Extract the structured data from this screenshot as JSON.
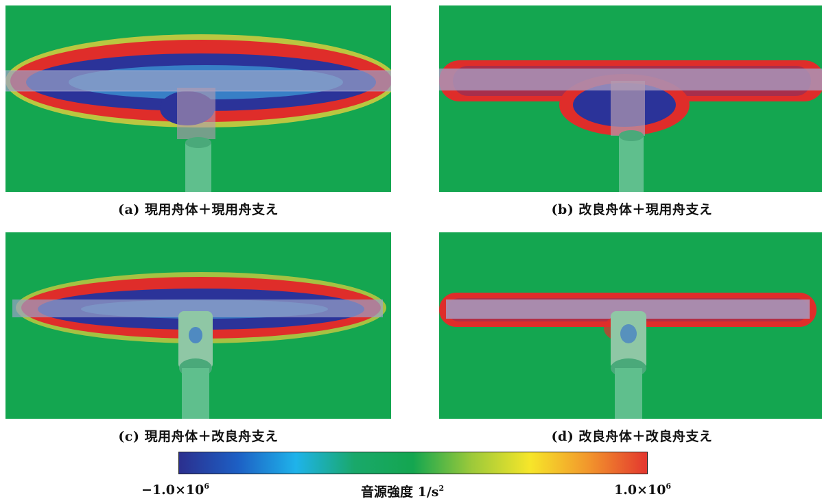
{
  "panels": [
    {
      "id": "a",
      "caption": "(a) 現用舟体＋現用舟支え"
    },
    {
      "id": "b",
      "caption": "(b) 改良舟体＋現用舟支え"
    },
    {
      "id": "c",
      "caption": "(c) 現用舟体＋改良舟支え"
    },
    {
      "id": "d",
      "caption": "(d) 改良舟体＋改良舟支え"
    }
  ],
  "colorbar": {
    "min_label": "−1.0×10",
    "min_exp": "6",
    "title": "音源強度  1/s",
    "title_exp": "2",
    "max_label": "1.0×10",
    "max_exp": "6",
    "colors": [
      "#2b2f8e",
      "#1d5fc4",
      "#1fb3ea",
      "#19a86a",
      "#14a650",
      "#9cc93a",
      "#f6e62a",
      "#f2962c",
      "#e3372f"
    ]
  },
  "palette": {
    "background": "#14a650",
    "positive": "#df2d2a",
    "positive_edge": "#e8c838",
    "negative": "#2b3399",
    "bar": "#9aa2c8"
  }
}
